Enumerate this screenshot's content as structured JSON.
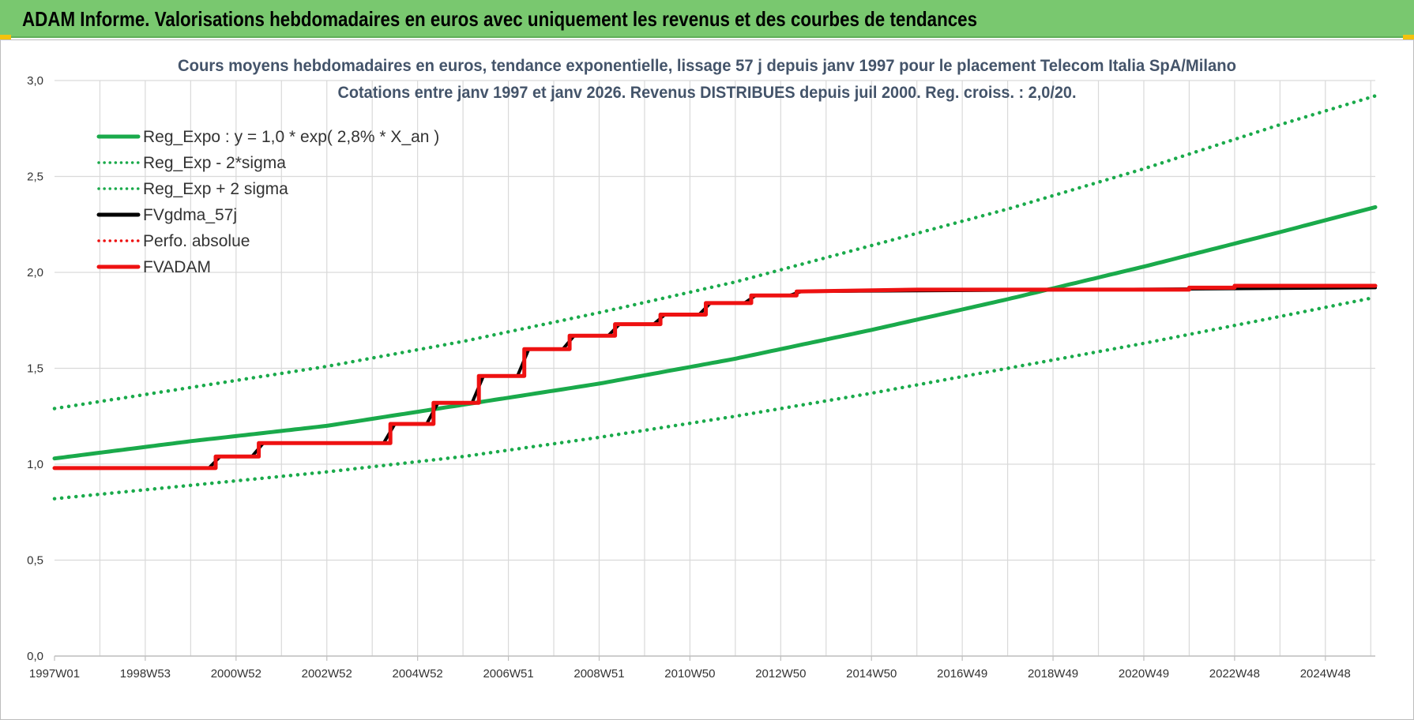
{
  "header": {
    "title": "ADAM Informe. Valorisations hebdomadaires en euros avec uniquement les revenus et des courbes de tendances"
  },
  "colors": {
    "header_bg": "#79c86f",
    "green": "#1aaa4b",
    "red": "#ee1111",
    "black": "#000000",
    "grid": "#d9d9d9"
  },
  "chart_data": {
    "type": "line",
    "title_lines": [
      "Cours moyens hebdomadaires en euros, tendance exponentielle, lissage 57 j depuis janv 1997  pour le placement Telecom Italia SpA/Milano",
      "Cotations entre janv 1997 et janv 2026. Revenus DISTRIBUES depuis juil 2000. Reg. croiss. : 2,0/20."
    ],
    "xlabel": "",
    "ylabel": "",
    "xlim": [
      1997.0,
      2026.1
    ],
    "ylim": [
      0,
      3.0
    ],
    "y_ticks": [
      "0,0",
      "0,5",
      "1,0",
      "1,5",
      "2,0",
      "2,5",
      "3,0"
    ],
    "x_ticks": [
      {
        "label": "1997W01",
        "x": 1997.0
      },
      {
        "label": "1998W53",
        "x": 1999.0
      },
      {
        "label": "2000W52",
        "x": 2001.0
      },
      {
        "label": "2002W52",
        "x": 2003.0
      },
      {
        "label": "2004W52",
        "x": 2005.0
      },
      {
        "label": "2006W51",
        "x": 2007.0
      },
      {
        "label": "2008W51",
        "x": 2009.0
      },
      {
        "label": "2010W50",
        "x": 2011.0
      },
      {
        "label": "2012W50",
        "x": 2013.0
      },
      {
        "label": "2014W50",
        "x": 2015.0
      },
      {
        "label": "2016W49",
        "x": 2017.0
      },
      {
        "label": "2018W49",
        "x": 2019.0
      },
      {
        "label": "2020W49",
        "x": 2021.0
      },
      {
        "label": "2022W48",
        "x": 2023.0
      },
      {
        "label": "2024W48",
        "x": 2025.0
      }
    ],
    "legend": [
      {
        "label": "Reg_Expo : y = 1,0 * exp( 2,8% *  X_an )",
        "style": "solid",
        "color": "#1aaa4b"
      },
      {
        "label": "Reg_Exp - 2*sigma",
        "style": "dotted",
        "color": "#1aaa4b"
      },
      {
        "label": "Reg_Exp + 2 sigma",
        "style": "dotted",
        "color": "#1aaa4b"
      },
      {
        "label": "FVgdma_57j",
        "style": "solid",
        "color": "#000000"
      },
      {
        "label": "Perfo. absolue",
        "style": "dotted",
        "color": "#ee1111"
      },
      {
        "label": "FVADAM",
        "style": "solid",
        "color": "#ee1111"
      }
    ],
    "series": [
      {
        "name": "Reg_Expo",
        "x": [
          1997,
          2000,
          2003,
          2006,
          2009,
          2012,
          2015,
          2018,
          2021,
          2024,
          2026.1
        ],
        "values": [
          1.03,
          1.12,
          1.2,
          1.31,
          1.42,
          1.55,
          1.7,
          1.86,
          2.03,
          2.21,
          2.34
        ]
      },
      {
        "name": "Reg_Exp - 2*sigma",
        "x": [
          1997,
          2000,
          2003,
          2006,
          2009,
          2012,
          2015,
          2018,
          2021,
          2024,
          2026.1
        ],
        "values": [
          0.82,
          0.89,
          0.96,
          1.04,
          1.14,
          1.25,
          1.37,
          1.5,
          1.63,
          1.77,
          1.87
        ]
      },
      {
        "name": "Reg_Exp + 2 sigma",
        "x": [
          1997,
          2000,
          2003,
          2006,
          2009,
          2012,
          2015,
          2018,
          2021,
          2024,
          2026.1
        ],
        "values": [
          1.29,
          1.4,
          1.51,
          1.64,
          1.79,
          1.95,
          2.14,
          2.33,
          2.54,
          2.77,
          2.92
        ]
      },
      {
        "name": "FVADAM",
        "x": [
          1997.0,
          2000.55,
          2000.55,
          2001.5,
          2001.5,
          2004.4,
          2004.4,
          2005.35,
          2005.35,
          2006.35,
          2006.35,
          2007.35,
          2007.35,
          2008.35,
          2008.35,
          2009.35,
          2009.35,
          2010.35,
          2010.35,
          2011.35,
          2011.35,
          2012.35,
          2012.35,
          2013.35,
          2013.35,
          2016.0,
          2019.0,
          2022.0,
          2022.0,
          2023.0,
          2023.0,
          2026.1
        ],
        "values": [
          0.98,
          0.98,
          1.04,
          1.04,
          1.11,
          1.11,
          1.21,
          1.21,
          1.32,
          1.32,
          1.46,
          1.46,
          1.6,
          1.6,
          1.67,
          1.67,
          1.73,
          1.73,
          1.78,
          1.78,
          1.84,
          1.84,
          1.88,
          1.88,
          1.9,
          1.91,
          1.91,
          1.91,
          1.92,
          1.92,
          1.93,
          1.93
        ]
      },
      {
        "name": "FVgdma_57j",
        "x": [
          1997.0,
          2000.4,
          2000.65,
          2001.35,
          2001.6,
          2004.25,
          2004.5,
          2005.2,
          2005.45,
          2006.2,
          2006.45,
          2007.2,
          2007.45,
          2008.2,
          2008.45,
          2009.2,
          2009.45,
          2010.2,
          2010.45,
          2011.2,
          2011.45,
          2012.2,
          2012.45,
          2013.2,
          2013.45,
          2026.1
        ],
        "values": [
          0.98,
          0.98,
          1.04,
          1.04,
          1.11,
          1.11,
          1.21,
          1.21,
          1.32,
          1.32,
          1.46,
          1.46,
          1.6,
          1.6,
          1.67,
          1.67,
          1.73,
          1.73,
          1.78,
          1.78,
          1.84,
          1.84,
          1.88,
          1.88,
          1.9,
          1.92
        ]
      }
    ]
  }
}
